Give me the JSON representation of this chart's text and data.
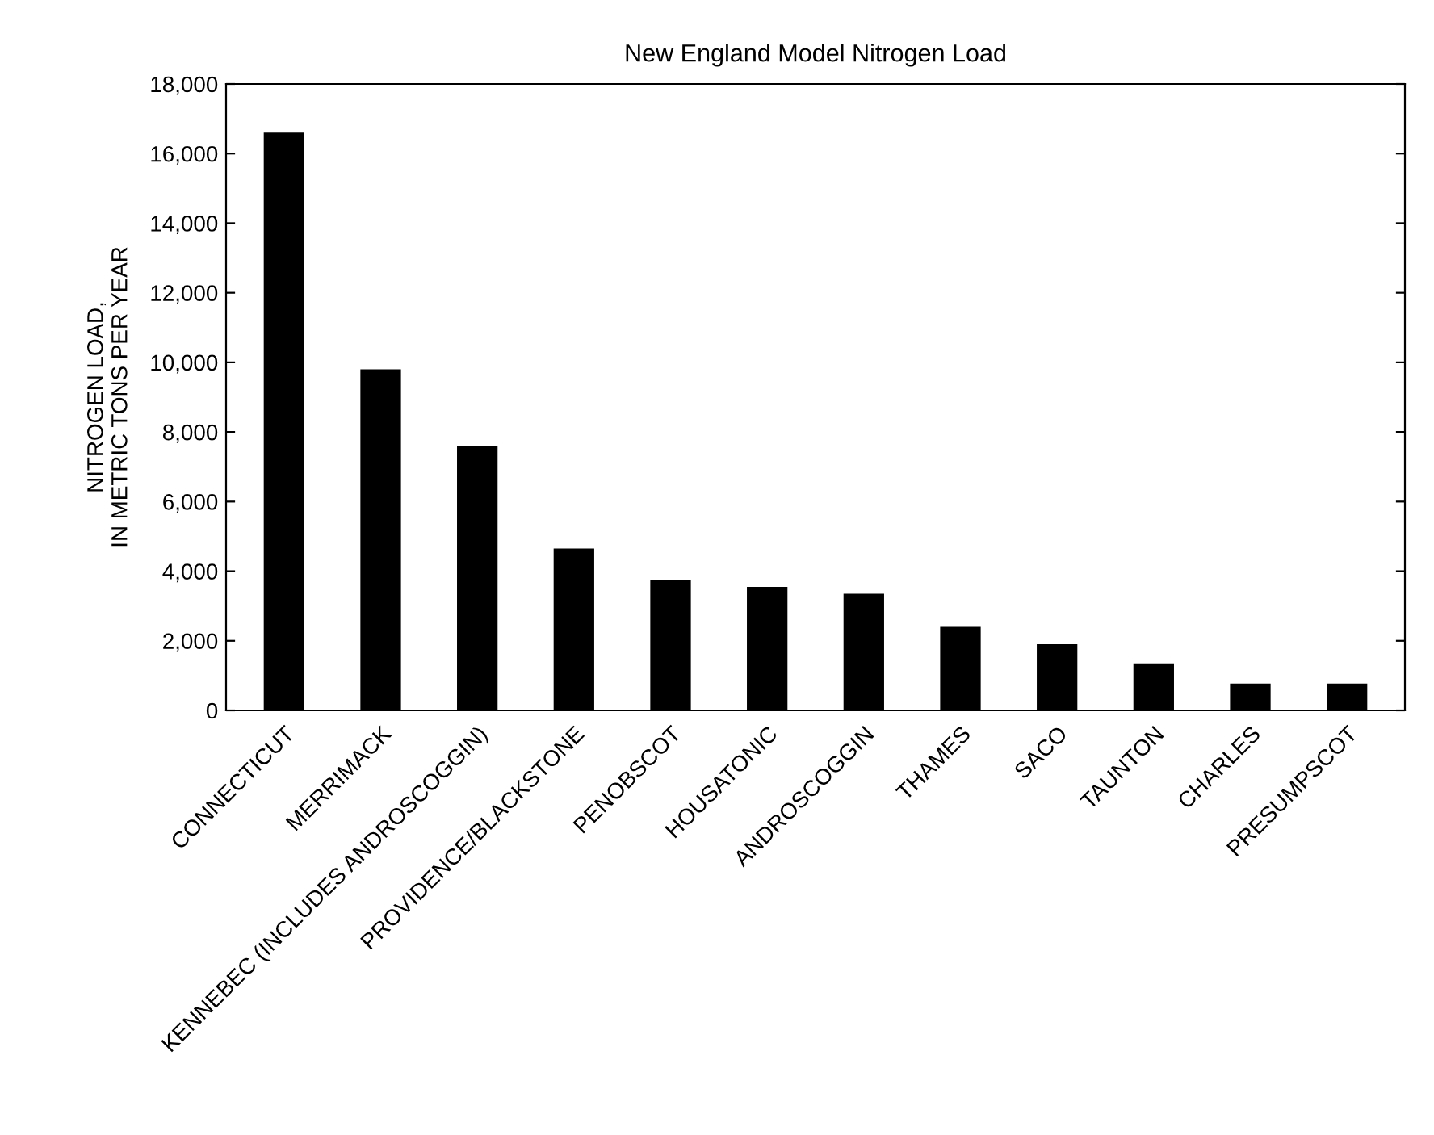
{
  "chart_data": {
    "type": "bar",
    "title": "New England Model Nitrogen Load",
    "ylabel": "NITROGEN LOAD,\nIN METRIC TONS PER YEAR",
    "categories": [
      "CONNECTICUT",
      "MERRIMACK",
      "KENNEBEC (INCLUDES ANDROSCOGGIN)",
      "PROVIDENCE/BLACKSTONE",
      "PENOBSCOT",
      "HOUSATONIC",
      "ANDROSCOGGIN",
      "THAMES",
      "SACO",
      "TAUNTON",
      "CHARLES",
      "PRESUMPSCOT"
    ],
    "values": [
      16600,
      9800,
      7600,
      4650,
      3750,
      3550,
      3350,
      2400,
      1900,
      1350,
      770,
      770
    ],
    "color": "#000000",
    "ylim": [
      0,
      18000
    ],
    "yticks": [
      {
        "value": 0,
        "label": "0"
      },
      {
        "value": 2000,
        "label": "2,000"
      },
      {
        "value": 4000,
        "label": "4,000"
      },
      {
        "value": 6000,
        "label": "6,000"
      },
      {
        "value": 8000,
        "label": "8,000"
      },
      {
        "value": 10000,
        "label": "10,000"
      },
      {
        "value": 12000,
        "label": "12,000"
      },
      {
        "value": 14000,
        "label": "14,000"
      },
      {
        "value": 16000,
        "label": "16,000"
      },
      {
        "value": 18000,
        "label": "18,000"
      }
    ],
    "grid": false
  }
}
